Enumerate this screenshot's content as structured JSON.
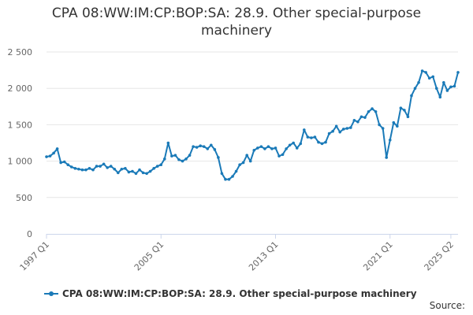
{
  "page": {
    "title": "CPA 08:WW:IM:CP:BOP:SA: 28.9. Other special-purpose machinery",
    "source": "Source:"
  },
  "colors": {
    "series": "#1a7ab8",
    "grid": "#e6e6e6",
    "axis": "#ccd6eb"
  },
  "chart_data": {
    "type": "line",
    "title": "CPA 08:WW:IM:CP:BOP:SA: 28.9. Other special-purpose machinery",
    "xlabel": "",
    "ylabel": "",
    "ylim": [
      0,
      2500
    ],
    "yticks": [
      0,
      500,
      1000,
      1500,
      2000,
      2500
    ],
    "ytick_labels": [
      "0",
      "500",
      "1 000",
      "1 500",
      "2 000",
      "2 500"
    ],
    "xticks": [
      {
        "label": "1997 Q1",
        "index": 0
      },
      {
        "label": "2005 Q1",
        "index": 32
      },
      {
        "label": "2013 Q1",
        "index": 64
      },
      {
        "label": "2021 Q1",
        "index": 96
      },
      {
        "label": "2025 Q2",
        "index": 113
      }
    ],
    "grid": true,
    "legend_position": "bottom",
    "series": [
      {
        "name": "CPA 08:WW:IM:CP:BOP:SA: 28.9. Other special-purpose machinery",
        "start": "1997 Q1",
        "frequency": "quarterly",
        "values": [
          1060,
          1070,
          1110,
          1170,
          980,
          990,
          950,
          920,
          900,
          890,
          880,
          880,
          900,
          880,
          930,
          930,
          960,
          910,
          930,
          890,
          840,
          890,
          900,
          850,
          860,
          830,
          880,
          840,
          830,
          860,
          900,
          930,
          950,
          1030,
          1250,
          1070,
          1080,
          1020,
          1000,
          1030,
          1080,
          1200,
          1190,
          1210,
          1200,
          1170,
          1220,
          1160,
          1050,
          830,
          750,
          750,
          790,
          860,
          950,
          980,
          1080,
          1000,
          1150,
          1180,
          1200,
          1170,
          1200,
          1170,
          1180,
          1070,
          1090,
          1170,
          1220,
          1250,
          1180,
          1240,
          1430,
          1330,
          1320,
          1330,
          1260,
          1240,
          1260,
          1380,
          1410,
          1480,
          1400,
          1440,
          1450,
          1460,
          1560,
          1540,
          1610,
          1600,
          1680,
          1720,
          1680,
          1500,
          1450,
          1050,
          1290,
          1530,
          1480,
          1730,
          1700,
          1610,
          1900,
          2000,
          2080,
          2240,
          2220,
          2140,
          2160,
          2000,
          1880,
          2080,
          1970,
          2020,
          2030,
          2220
        ]
      }
    ]
  }
}
